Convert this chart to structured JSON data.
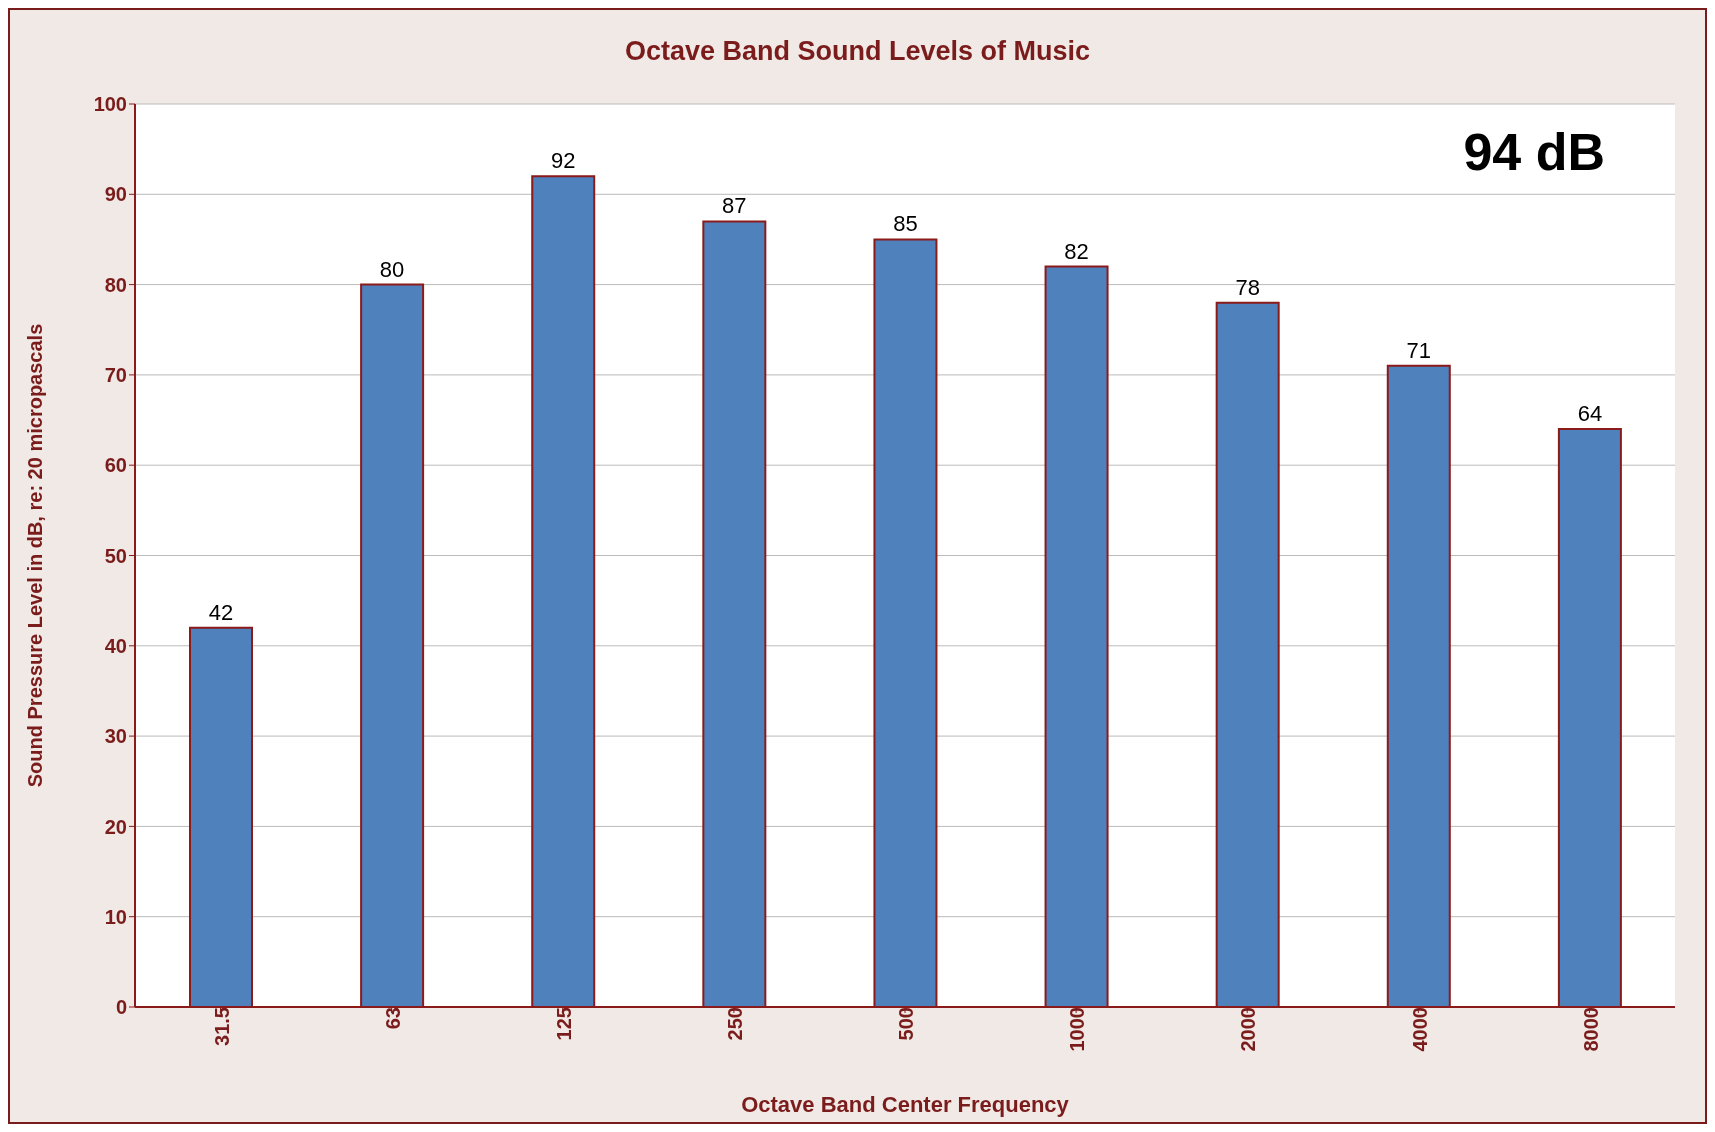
{
  "chart_data": {
    "type": "bar",
    "title": "Octave Band Sound Levels of Music",
    "xlabel": "Octave Band Center Frequency",
    "ylabel": "Sound Pressure Level in dB, re: 20 micropascals",
    "categories": [
      "31.5",
      "63",
      "125",
      "250",
      "500",
      "1000",
      "2000",
      "4000",
      "8000"
    ],
    "values": [
      42,
      80,
      92,
      87,
      85,
      82,
      78,
      71,
      64
    ],
    "color": "#4f81bd",
    "ylim": [
      0,
      100
    ],
    "yticks": [
      0,
      10,
      20,
      30,
      40,
      50,
      60,
      70,
      80,
      90,
      100
    ],
    "grid": "y",
    "data_labels": true,
    "annotations": [
      "94 dB"
    ]
  }
}
